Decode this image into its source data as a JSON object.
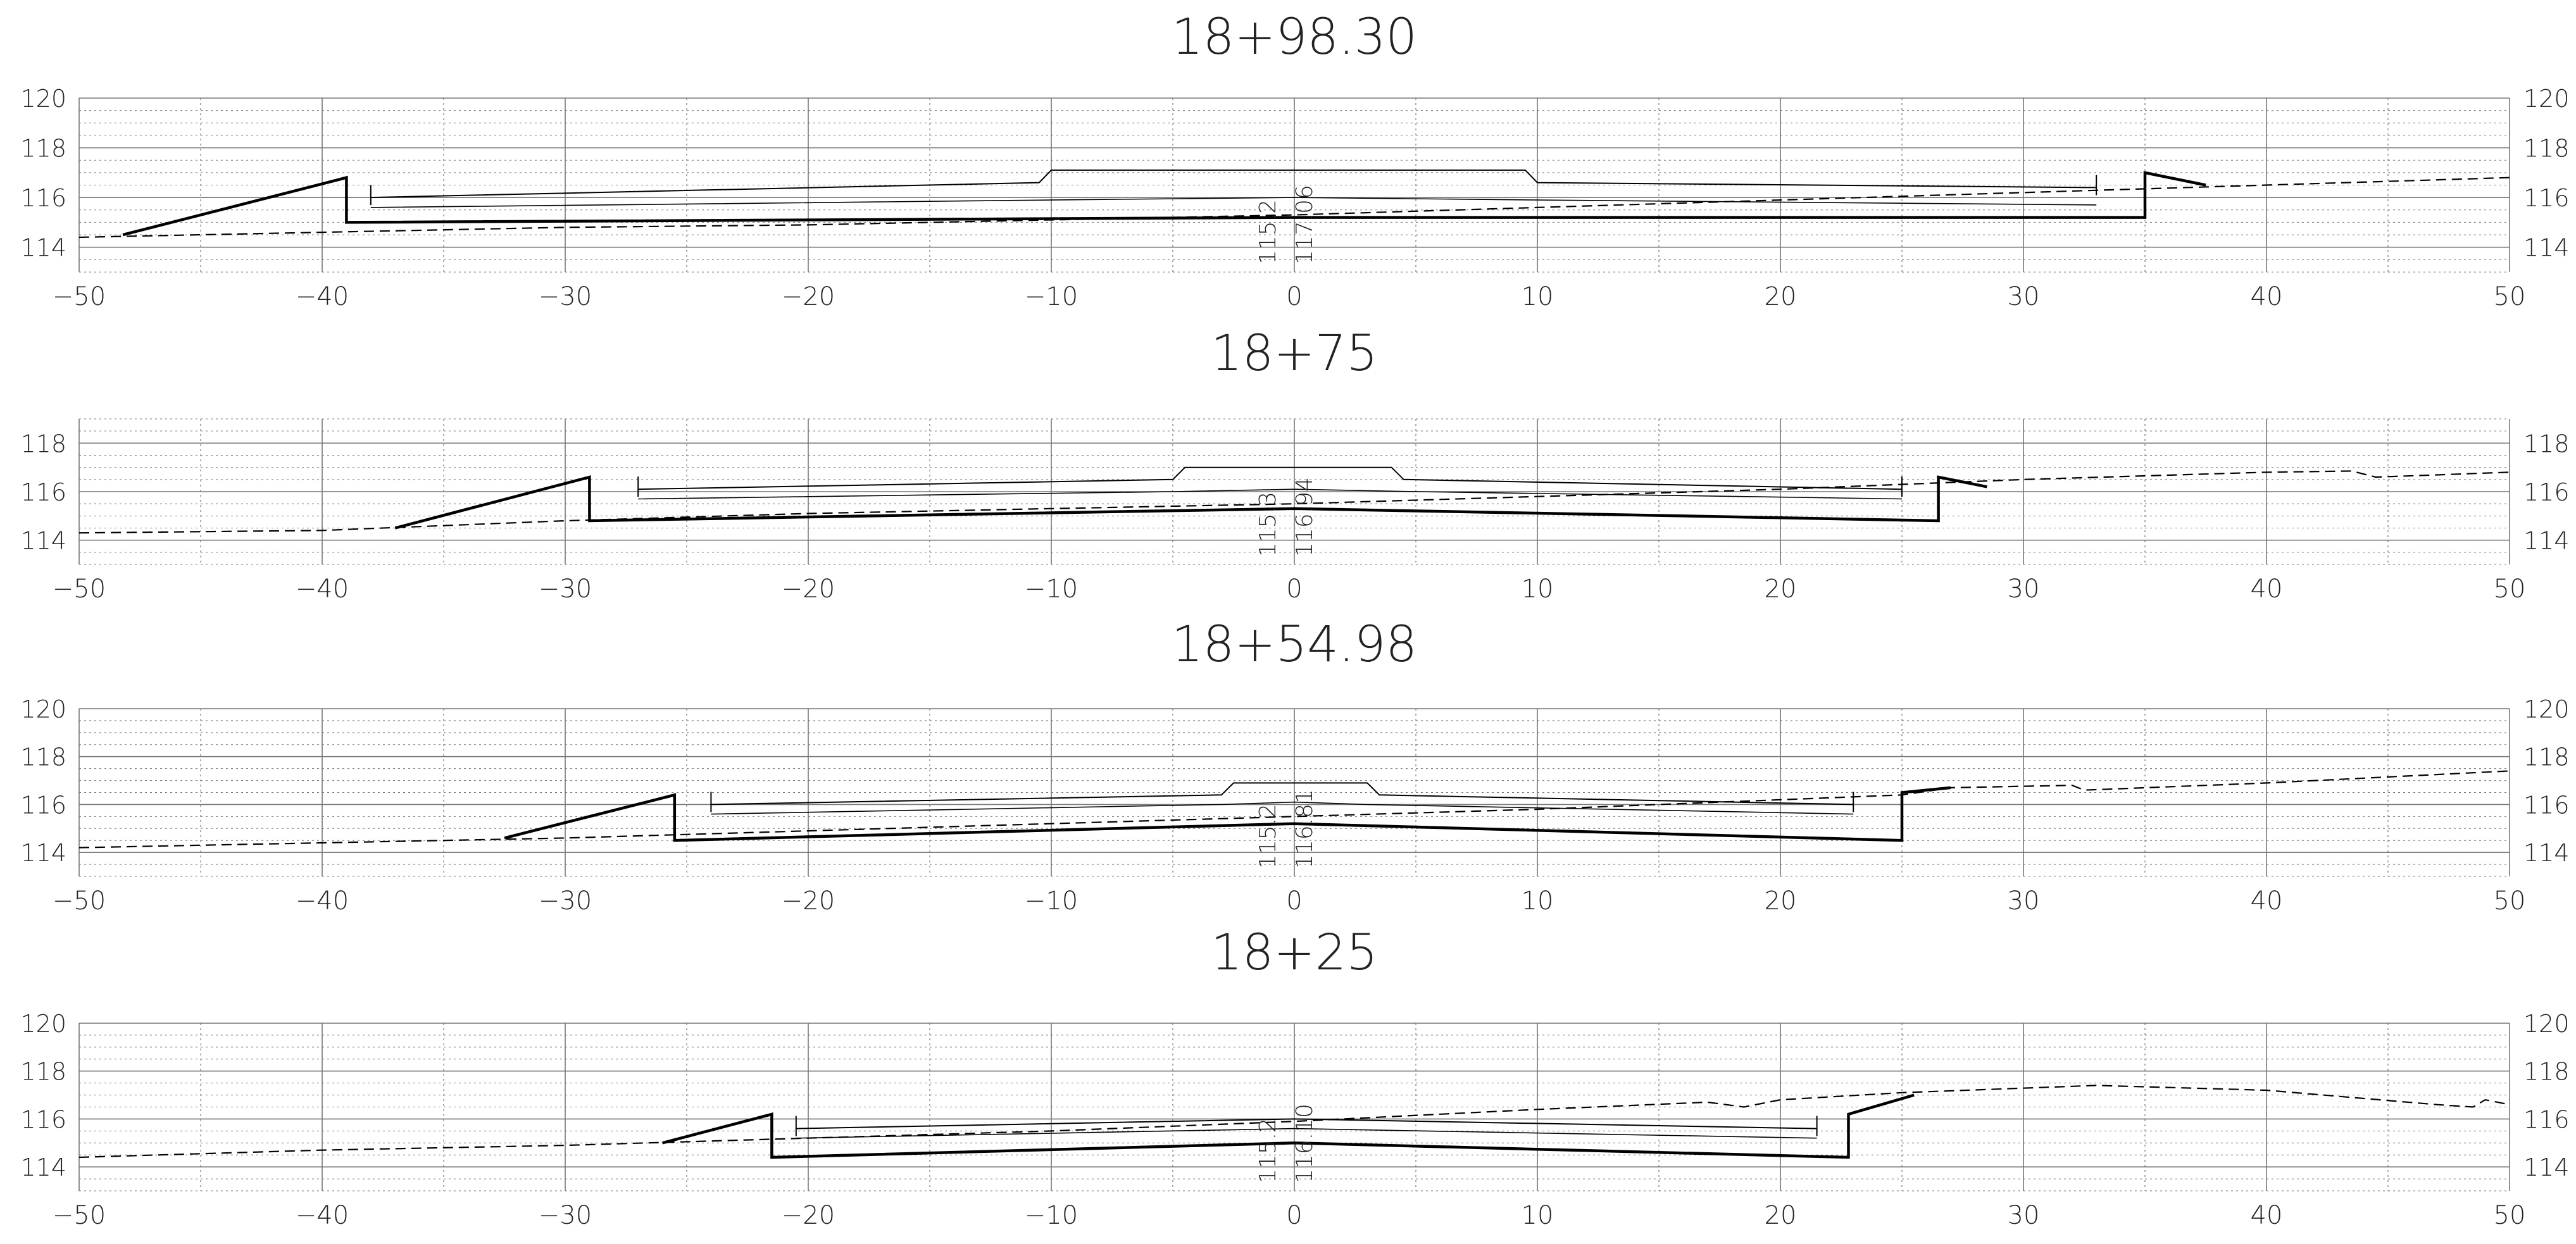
{
  "drawing": {
    "x_axis": {
      "min": -50,
      "max": 50,
      "major_step": 10,
      "minor_step": 5,
      "tick_labels": [
        "−50",
        "−40",
        "−30",
        "−20",
        "−10",
        "0",
        "10",
        "20",
        "30",
        "40",
        "50"
      ]
    },
    "line_color": "#000000",
    "grid_color": "#777777"
  },
  "sections": [
    {
      "title": "18+98.30",
      "y_axis": {
        "min": 113,
        "max": 120,
        "tick_values": [
          114,
          116,
          118,
          120
        ],
        "tick_labels": [
          "114",
          "116",
          "118",
          "120"
        ]
      },
      "center_labels": [
        "115.2",
        "117.06"
      ],
      "terrain": [
        [
          -50,
          114.4
        ],
        [
          -40,
          114.6
        ],
        [
          -30,
          114.8
        ],
        [
          -20,
          114.9
        ],
        [
          -10,
          115.1
        ],
        [
          0,
          115.3
        ],
        [
          10,
          115.6
        ],
        [
          20,
          115.9
        ],
        [
          30,
          116.2
        ],
        [
          40,
          116.5
        ],
        [
          50,
          116.8
        ]
      ],
      "excavation": [
        [
          -48.2,
          114.5
        ],
        [
          -39,
          116.8
        ],
        [
          -39,
          115
        ],
        [
          0,
          115.2
        ],
        [
          35,
          115.2
        ],
        [
          35,
          117
        ],
        [
          37.5,
          116.5
        ]
      ],
      "road": [
        [
          -38,
          116
        ],
        [
          -10.5,
          116.6
        ],
        [
          -10,
          117.1
        ],
        [
          9.5,
          117.1
        ],
        [
          10,
          116.6
        ],
        [
          33,
          116.4
        ]
      ],
      "subgrade": [
        [
          -38,
          115.6
        ],
        [
          -10,
          115.9
        ],
        [
          0,
          116
        ],
        [
          10,
          115.9
        ],
        [
          33,
          115.7
        ]
      ]
    },
    {
      "title": "18+75",
      "y_axis": {
        "min": 113,
        "max": 119,
        "tick_values": [
          114,
          116,
          118
        ],
        "tick_labels": [
          "114",
          "116",
          "118"
        ]
      },
      "center_labels": [
        "115.3",
        "116.94"
      ],
      "terrain": [
        [
          -50,
          114.3
        ],
        [
          -40,
          114.4
        ],
        [
          -30,
          114.8
        ],
        [
          -20,
          115.1
        ],
        [
          -10,
          115.3
        ],
        [
          0,
          115.5
        ],
        [
          10,
          115.8
        ],
        [
          20,
          116.1
        ],
        [
          30,
          116.5
        ],
        [
          40,
          116.8
        ],
        [
          43.5,
          116.85
        ],
        [
          44.5,
          116.6
        ],
        [
          50,
          116.8
        ]
      ],
      "excavation": [
        [
          -37,
          114.5
        ],
        [
          -29,
          116.6
        ],
        [
          -29,
          114.8
        ],
        [
          0,
          115.3
        ],
        [
          26.5,
          114.8
        ],
        [
          26.5,
          116.6
        ],
        [
          28.5,
          116.2
        ]
      ],
      "road": [
        [
          -27,
          116.1
        ],
        [
          -5,
          116.5
        ],
        [
          -4.5,
          117
        ],
        [
          4,
          117
        ],
        [
          4.5,
          116.5
        ],
        [
          25,
          116.1
        ]
      ],
      "subgrade": [
        [
          -27,
          115.7
        ],
        [
          -5,
          116
        ],
        [
          0,
          116.1
        ],
        [
          5,
          116
        ],
        [
          25,
          115.7
        ]
      ]
    },
    {
      "title": "18+54.98",
      "y_axis": {
        "min": 113,
        "max": 120,
        "tick_values": [
          114,
          116,
          118,
          120
        ],
        "tick_labels": [
          "114",
          "116",
          "118",
          "120"
        ]
      },
      "center_labels": [
        "115.2",
        "116.81"
      ],
      "terrain": [
        [
          -50,
          114.2
        ],
        [
          -40,
          114.4
        ],
        [
          -30,
          114.6
        ],
        [
          -20,
          114.9
        ],
        [
          -10,
          115.2
        ],
        [
          0,
          115.5
        ],
        [
          10,
          115.8
        ],
        [
          20,
          116.2
        ],
        [
          25,
          116.4
        ],
        [
          27,
          116.7
        ],
        [
          32,
          116.8
        ],
        [
          32.5,
          116.6
        ],
        [
          40,
          116.9
        ],
        [
          50,
          117.4
        ]
      ],
      "excavation": [
        [
          -32.5,
          114.6
        ],
        [
          -25.5,
          116.4
        ],
        [
          -25.5,
          114.5
        ],
        [
          0,
          115.2
        ],
        [
          25,
          114.5
        ],
        [
          25,
          116.5
        ],
        [
          27,
          116.7
        ]
      ],
      "road": [
        [
          -24,
          116
        ],
        [
          -3,
          116.4
        ],
        [
          -2.5,
          116.9
        ],
        [
          3,
          116.9
        ],
        [
          3.5,
          116.4
        ],
        [
          23,
          116
        ]
      ],
      "subgrade": [
        [
          -24,
          115.6
        ],
        [
          -3,
          116
        ],
        [
          0,
          116.1
        ],
        [
          3,
          116
        ],
        [
          23,
          115.6
        ]
      ]
    },
    {
      "title": "18+25",
      "y_axis": {
        "min": 113,
        "max": 120,
        "tick_values": [
          114,
          116,
          118,
          120
        ],
        "tick_labels": [
          "114",
          "116",
          "118",
          "120"
        ]
      },
      "center_labels": [
        "115.2",
        "116.10"
      ],
      "terrain": [
        [
          -50,
          114.4
        ],
        [
          -40,
          114.7
        ],
        [
          -30,
          114.9
        ],
        [
          -20,
          115.2
        ],
        [
          -10,
          115.5
        ],
        [
          0,
          115.9
        ],
        [
          10,
          116.4
        ],
        [
          17,
          116.7
        ],
        [
          18.5,
          116.5
        ],
        [
          20,
          116.8
        ],
        [
          25,
          117.1
        ],
        [
          33,
          117.4
        ],
        [
          40,
          117.2
        ],
        [
          47,
          116.6
        ],
        [
          48.5,
          116.5
        ],
        [
          49,
          116.8
        ],
        [
          50,
          116.6
        ]
      ],
      "excavation": [
        [
          -26,
          115
        ],
        [
          -21.5,
          116.2
        ],
        [
          -21.5,
          114.4
        ],
        [
          0,
          115
        ],
        [
          22.8,
          114.4
        ],
        [
          22.8,
          116.2
        ],
        [
          25.5,
          117
        ]
      ],
      "road": [
        [
          -20.5,
          115.6
        ],
        [
          0,
          116
        ],
        [
          21.5,
          115.6
        ]
      ],
      "subgrade": [
        [
          -20.5,
          115.2
        ],
        [
          0,
          115.6
        ],
        [
          21.5,
          115.2
        ]
      ]
    }
  ]
}
